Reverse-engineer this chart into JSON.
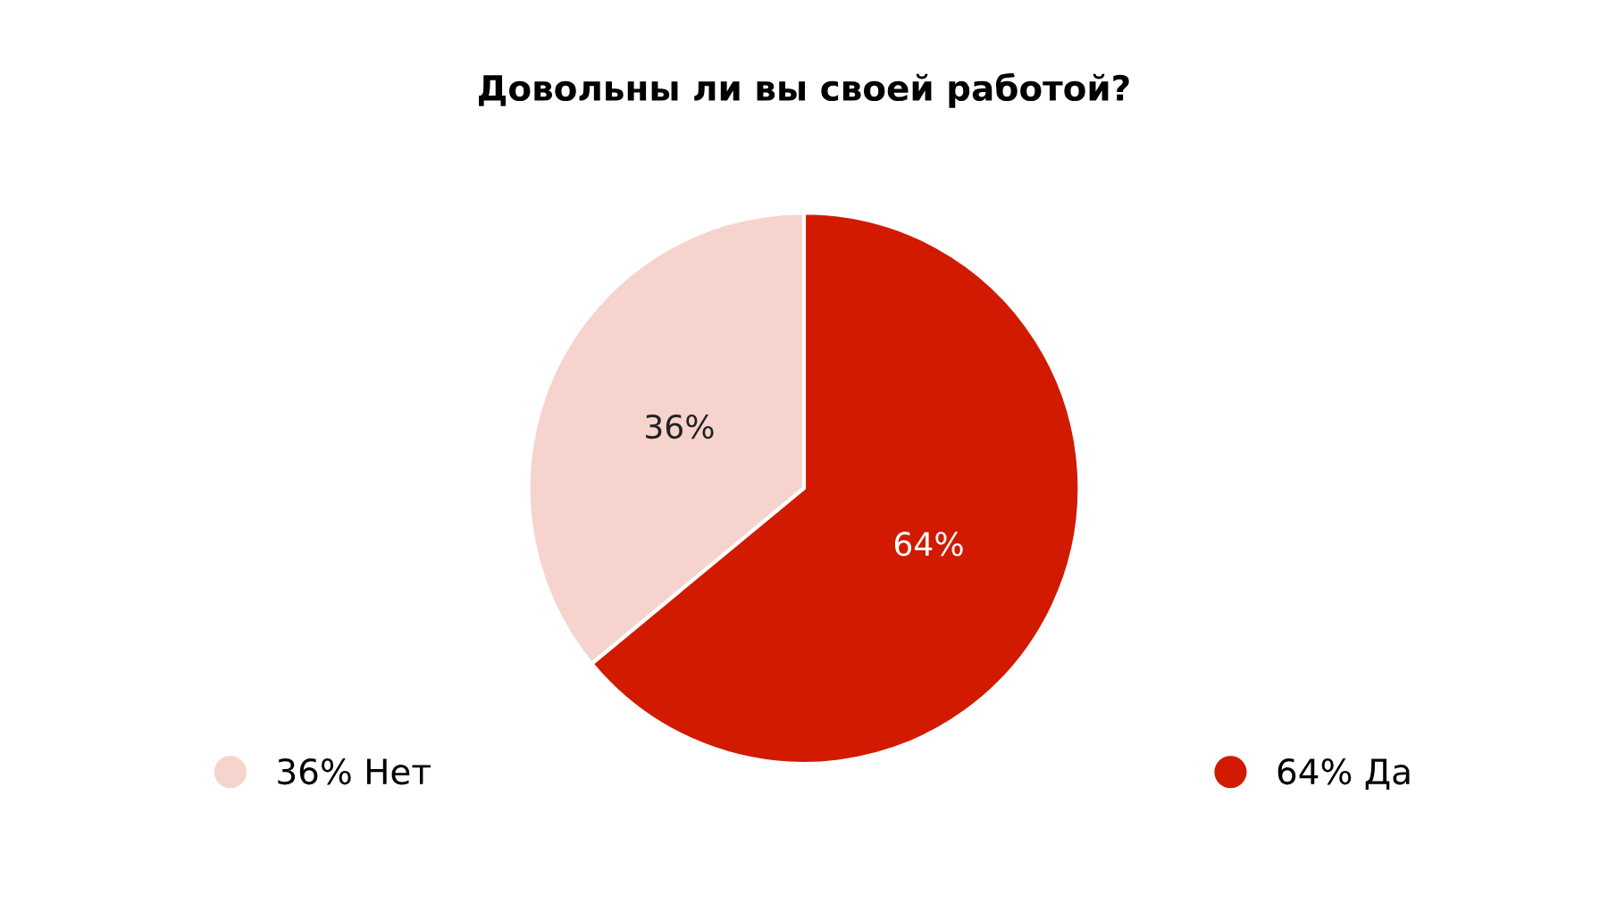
{
  "chart_data": {
    "type": "pie",
    "title": "Довольны ли вы своей работой?",
    "categories": [
      "Нет",
      "Да"
    ],
    "values": [
      36,
      64
    ],
    "colors": [
      "#f6d3cd",
      "#d11a00"
    ],
    "value_labels": [
      "36%",
      "64%"
    ],
    "legend": "bottom"
  }
}
